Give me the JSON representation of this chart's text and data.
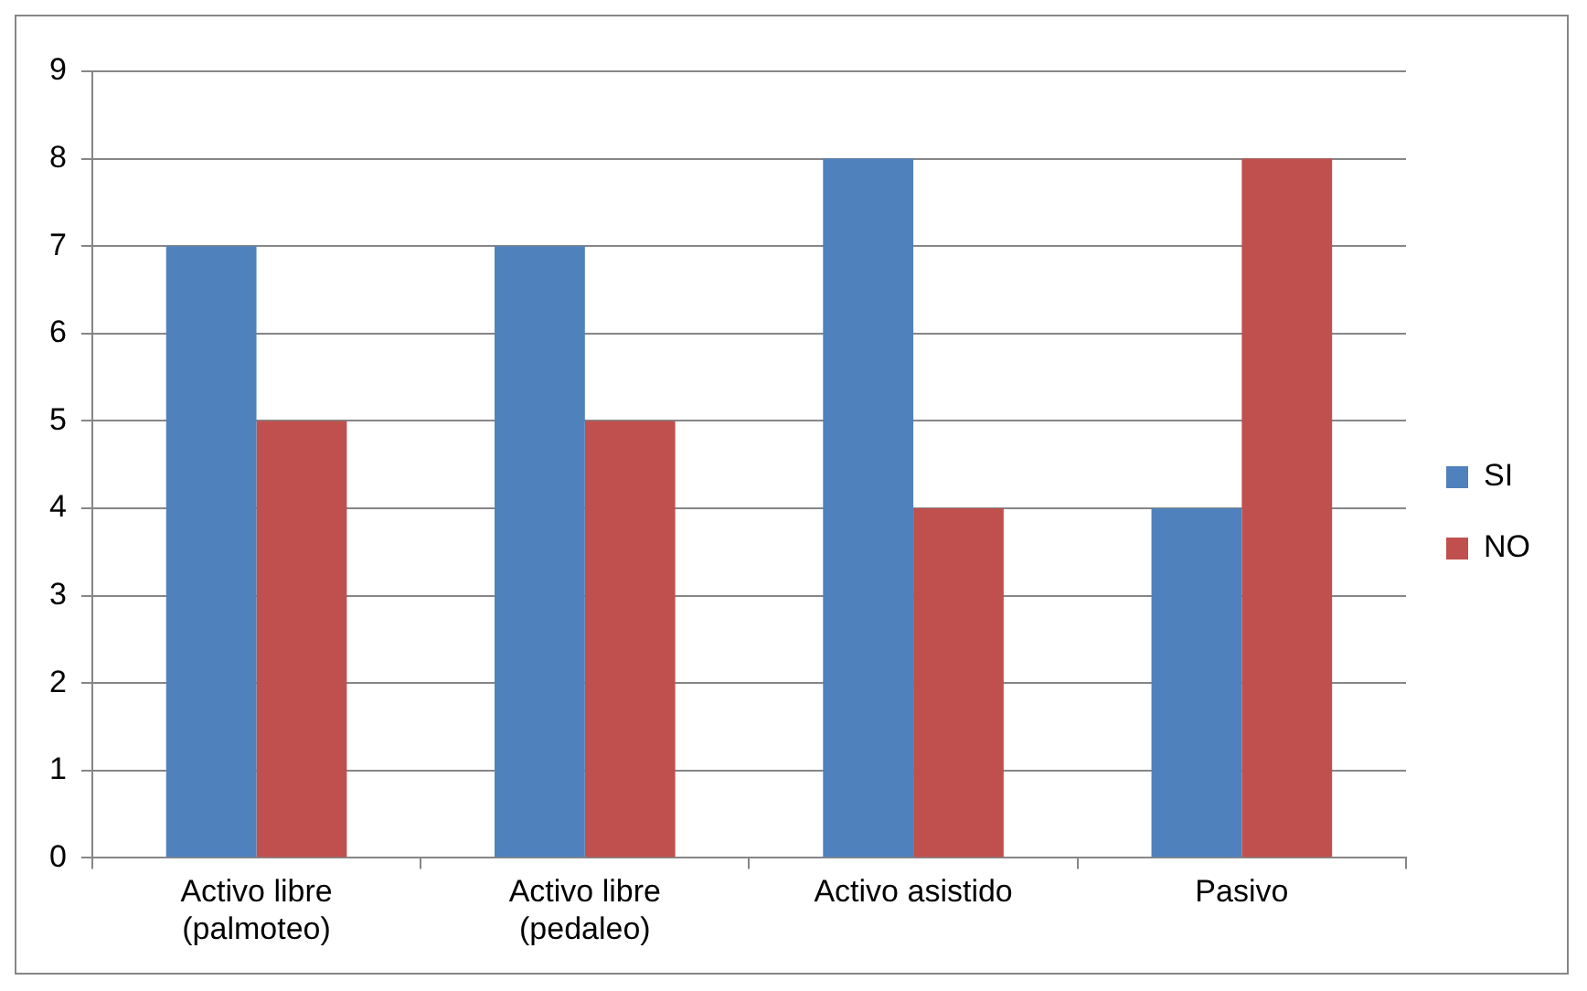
{
  "chart_data": {
    "type": "bar",
    "categories": [
      "Activo libre (palmoteo)",
      "Activo libre (pedaleo)",
      "Activo asistido",
      "Pasivo"
    ],
    "series": [
      {
        "name": "SI",
        "color": "#4f81bd",
        "values": [
          7,
          7,
          8,
          4
        ]
      },
      {
        "name": "NO",
        "color": "#c0504d",
        "values": [
          5,
          5,
          4,
          8
        ]
      }
    ],
    "ylim": [
      0,
      9
    ],
    "yticks": [
      0,
      1,
      2,
      3,
      4,
      5,
      6,
      7,
      8,
      9
    ],
    "grid": "y",
    "legend": "right"
  }
}
